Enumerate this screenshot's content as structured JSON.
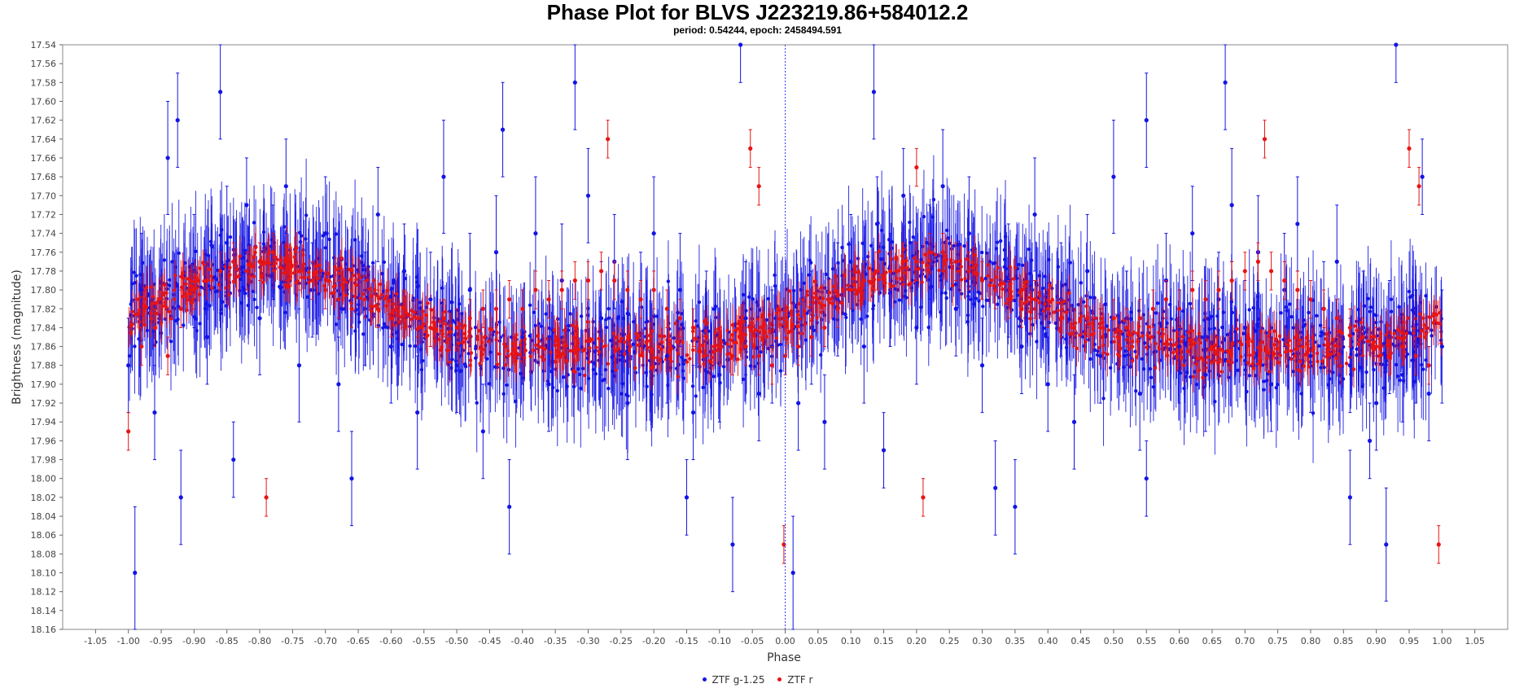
{
  "chart_data": {
    "type": "scatter",
    "title": "Phase Plot for BLVS J223219.86+584012.2",
    "subtitle": "period: 0.54244, epoch: 2458494.591",
    "xlabel": "Phase",
    "ylabel": "Brightness (magnitude)",
    "xlim": [
      -1.1,
      1.1
    ],
    "ylim": [
      17.54,
      18.16
    ],
    "y_inverted": true,
    "grid": false,
    "reference_line_x": 0,
    "legend_position": "bottom-center",
    "x_ticks": [
      "-1.05",
      "-1.00",
      "-0.95",
      "-0.90",
      "-0.85",
      "-0.80",
      "-0.75",
      "-0.70",
      "-0.65",
      "-0.60",
      "-0.55",
      "-0.50",
      "-0.45",
      "-0.40",
      "-0.35",
      "-0.30",
      "-0.25",
      "-0.20",
      "-0.15",
      "-0.10",
      "-0.05",
      "0.00",
      "0.05",
      "0.10",
      "0.15",
      "0.20",
      "0.25",
      "0.30",
      "0.35",
      "0.40",
      "0.45",
      "0.50",
      "0.55",
      "0.60",
      "0.65",
      "0.70",
      "0.75",
      "0.80",
      "0.85",
      "0.90",
      "0.95",
      "1.00",
      "1.05"
    ],
    "y_ticks": [
      "17.54",
      "17.56",
      "17.58",
      "17.60",
      "17.62",
      "17.64",
      "17.66",
      "17.68",
      "17.70",
      "17.72",
      "17.74",
      "17.76",
      "17.78",
      "17.80",
      "17.82",
      "17.84",
      "17.86",
      "17.88",
      "17.90",
      "17.92",
      "17.94",
      "17.96",
      "17.98",
      "18.00",
      "18.02",
      "18.04",
      "18.06",
      "18.08",
      "18.10",
      "18.12",
      "18.14",
      "18.16"
    ],
    "series": [
      {
        "name": "ZTF g-1.25",
        "color": "#1414e6",
        "points": [
          [
            -0.99,
            18.1,
            0.07
          ],
          [
            -0.925,
            17.62,
            0.05
          ],
          [
            -0.86,
            17.59,
            0.05
          ],
          [
            -0.84,
            17.98,
            0.04
          ],
          [
            -0.66,
            18.0,
            0.05
          ],
          [
            -0.43,
            17.63,
            0.05
          ],
          [
            -0.42,
            18.03,
            0.05
          ],
          [
            -0.32,
            17.58,
            0.05
          ],
          [
            -0.15,
            18.02,
            0.04
          ],
          [
            -0.08,
            18.07,
            0.05
          ],
          [
            -0.068,
            17.54,
            0.04
          ],
          [
            0.012,
            18.1,
            0.06
          ],
          [
            0.135,
            17.59,
            0.05
          ],
          [
            0.15,
            17.97,
            0.04
          ],
          [
            0.32,
            18.01,
            0.05
          ],
          [
            0.35,
            18.03,
            0.05
          ],
          [
            0.55,
            17.62,
            0.05
          ],
          [
            0.55,
            18.0,
            0.04
          ],
          [
            0.67,
            17.58,
            0.05
          ],
          [
            0.86,
            18.02,
            0.05
          ],
          [
            0.915,
            18.07,
            0.06
          ],
          [
            0.93,
            17.54,
            0.04
          ],
          [
            0.97,
            17.68,
            0.04
          ],
          [
            0.89,
            17.96,
            0.04
          ],
          [
            -1.0,
            17.88,
            0.05
          ],
          [
            -0.98,
            17.8,
            0.06
          ],
          [
            -0.96,
            17.93,
            0.05
          ],
          [
            -0.94,
            17.66,
            0.06
          ],
          [
            -0.92,
            18.02,
            0.05
          ],
          [
            -0.9,
            17.78,
            0.06
          ],
          [
            -0.88,
            17.85,
            0.05
          ],
          [
            -0.85,
            17.75,
            0.06
          ],
          [
            -0.82,
            17.71,
            0.05
          ],
          [
            -0.8,
            17.83,
            0.06
          ],
          [
            -0.78,
            17.76,
            0.05
          ],
          [
            -0.76,
            17.69,
            0.05
          ],
          [
            -0.74,
            17.88,
            0.06
          ],
          [
            -0.72,
            17.8,
            0.05
          ],
          [
            -0.7,
            17.74,
            0.06
          ],
          [
            -0.68,
            17.9,
            0.05
          ],
          [
            -0.64,
            17.82,
            0.06
          ],
          [
            -0.62,
            17.72,
            0.05
          ],
          [
            -0.6,
            17.86,
            0.06
          ],
          [
            -0.58,
            17.78,
            0.05
          ],
          [
            -0.56,
            17.93,
            0.06
          ],
          [
            -0.54,
            17.81,
            0.05
          ],
          [
            -0.52,
            17.68,
            0.06
          ],
          [
            -0.5,
            17.88,
            0.05
          ],
          [
            -0.48,
            17.8,
            0.06
          ],
          [
            -0.46,
            17.95,
            0.05
          ],
          [
            -0.44,
            17.76,
            0.06
          ],
          [
            -0.4,
            17.85,
            0.05
          ],
          [
            -0.38,
            17.74,
            0.06
          ],
          [
            -0.36,
            17.9,
            0.05
          ],
          [
            -0.34,
            17.79,
            0.06
          ],
          [
            -0.3,
            17.7,
            0.05
          ],
          [
            -0.28,
            17.83,
            0.06
          ],
          [
            -0.26,
            17.77,
            0.05
          ],
          [
            -0.24,
            17.92,
            0.06
          ],
          [
            -0.22,
            17.81,
            0.05
          ],
          [
            -0.2,
            17.74,
            0.06
          ],
          [
            -0.18,
            17.87,
            0.05
          ],
          [
            -0.16,
            17.8,
            0.06
          ],
          [
            -0.14,
            17.93,
            0.05
          ],
          [
            -0.12,
            17.84,
            0.06
          ],
          [
            -0.1,
            17.89,
            0.05
          ],
          [
            -0.06,
            17.83,
            0.06
          ],
          [
            -0.04,
            17.91,
            0.05
          ],
          [
            -0.02,
            17.86,
            0.06
          ],
          [
            0.02,
            17.92,
            0.05
          ],
          [
            0.04,
            17.84,
            0.06
          ],
          [
            0.06,
            17.94,
            0.05
          ],
          [
            0.08,
            17.81,
            0.06
          ],
          [
            0.1,
            17.77,
            0.05
          ],
          [
            0.12,
            17.86,
            0.06
          ],
          [
            0.14,
            17.73,
            0.05
          ],
          [
            0.16,
            17.8,
            0.06
          ],
          [
            0.18,
            17.7,
            0.05
          ],
          [
            0.2,
            17.84,
            0.06
          ],
          [
            0.22,
            17.76,
            0.05
          ],
          [
            0.24,
            17.69,
            0.06
          ],
          [
            0.26,
            17.82,
            0.05
          ],
          [
            0.28,
            17.74,
            0.06
          ],
          [
            0.3,
            17.88,
            0.05
          ],
          [
            0.34,
            17.79,
            0.06
          ],
          [
            0.36,
            17.86,
            0.05
          ],
          [
            0.38,
            17.72,
            0.06
          ],
          [
            0.4,
            17.9,
            0.05
          ],
          [
            0.42,
            17.81,
            0.06
          ],
          [
            0.44,
            17.94,
            0.05
          ],
          [
            0.46,
            17.78,
            0.06
          ],
          [
            0.48,
            17.87,
            0.05
          ],
          [
            0.5,
            17.68,
            0.06
          ],
          [
            0.52,
            17.83,
            0.05
          ],
          [
            0.54,
            17.91,
            0.06
          ],
          [
            0.58,
            17.79,
            0.05
          ],
          [
            0.6,
            17.86,
            0.06
          ],
          [
            0.62,
            17.74,
            0.05
          ],
          [
            0.64,
            17.89,
            0.06
          ],
          [
            0.66,
            17.81,
            0.05
          ],
          [
            0.68,
            17.71,
            0.06
          ],
          [
            0.7,
            17.84,
            0.05
          ],
          [
            0.72,
            17.76,
            0.06
          ],
          [
            0.74,
            17.9,
            0.05
          ],
          [
            0.76,
            17.8,
            0.06
          ],
          [
            0.78,
            17.73,
            0.05
          ],
          [
            0.8,
            17.87,
            0.06
          ],
          [
            0.82,
            17.82,
            0.05
          ],
          [
            0.84,
            17.77,
            0.06
          ],
          [
            0.86,
            17.88,
            0.05
          ],
          [
            0.88,
            17.84,
            0.06
          ],
          [
            0.9,
            17.92,
            0.05
          ],
          [
            0.92,
            17.85,
            0.06
          ],
          [
            0.94,
            17.89,
            0.05
          ],
          [
            0.96,
            17.86,
            0.06
          ],
          [
            0.98,
            17.91,
            0.05
          ],
          [
            1.0,
            17.86,
            0.06
          ]
        ]
      },
      {
        "name": "ZTF r",
        "color": "#e81414",
        "points": [
          [
            -1.0,
            17.95,
            0.02
          ],
          [
            -0.79,
            18.02,
            0.02
          ],
          [
            -0.27,
            17.64,
            0.02
          ],
          [
            -0.053,
            17.65,
            0.02
          ],
          [
            -0.04,
            17.69,
            0.02
          ],
          [
            -0.002,
            18.07,
            0.02
          ],
          [
            0.2,
            17.67,
            0.02
          ],
          [
            0.21,
            18.02,
            0.02
          ],
          [
            0.73,
            17.64,
            0.02
          ],
          [
            0.95,
            17.65,
            0.02
          ],
          [
            0.965,
            17.69,
            0.02
          ],
          [
            0.995,
            18.07,
            0.02
          ],
          [
            -0.98,
            17.86,
            0.02
          ],
          [
            -0.96,
            17.84,
            0.02
          ],
          [
            -0.94,
            17.87,
            0.02
          ],
          [
            -0.92,
            17.82,
            0.02
          ],
          [
            -0.9,
            17.8,
            0.02
          ],
          [
            -0.88,
            17.79,
            0.02
          ],
          [
            -0.86,
            17.78,
            0.02
          ],
          [
            -0.84,
            17.77,
            0.02
          ],
          [
            -0.82,
            17.78,
            0.02
          ],
          [
            -0.8,
            17.77,
            0.02
          ],
          [
            -0.78,
            17.76,
            0.02
          ],
          [
            -0.76,
            17.77,
            0.02
          ],
          [
            -0.74,
            17.78,
            0.02
          ],
          [
            -0.72,
            17.79,
            0.02
          ],
          [
            -0.7,
            17.8,
            0.02
          ],
          [
            -0.68,
            17.81,
            0.02
          ],
          [
            -0.66,
            17.82,
            0.02
          ],
          [
            -0.64,
            17.81,
            0.02
          ],
          [
            -0.62,
            17.82,
            0.02
          ],
          [
            -0.6,
            17.83,
            0.02
          ],
          [
            -0.58,
            17.82,
            0.02
          ],
          [
            -0.56,
            17.83,
            0.02
          ],
          [
            -0.54,
            17.84,
            0.02
          ],
          [
            -0.52,
            17.83,
            0.02
          ],
          [
            -0.5,
            17.84,
            0.02
          ],
          [
            -0.48,
            17.83,
            0.02
          ],
          [
            -0.46,
            17.82,
            0.02
          ],
          [
            -0.44,
            17.82,
            0.02
          ],
          [
            -0.42,
            17.81,
            0.02
          ],
          [
            -0.4,
            17.82,
            0.02
          ],
          [
            -0.38,
            17.8,
            0.02
          ],
          [
            -0.36,
            17.81,
            0.02
          ],
          [
            -0.34,
            17.8,
            0.02
          ],
          [
            -0.32,
            17.79,
            0.02
          ],
          [
            -0.3,
            17.79,
            0.02
          ],
          [
            -0.28,
            17.78,
            0.02
          ],
          [
            -0.26,
            17.79,
            0.02
          ],
          [
            -0.24,
            17.8,
            0.02
          ],
          [
            -0.22,
            17.81,
            0.02
          ],
          [
            -0.2,
            17.8,
            0.02
          ],
          [
            -0.18,
            17.82,
            0.02
          ],
          [
            -0.16,
            17.83,
            0.02
          ],
          [
            -0.14,
            17.84,
            0.02
          ],
          [
            -0.12,
            17.85,
            0.02
          ],
          [
            -0.1,
            17.86,
            0.02
          ],
          [
            -0.08,
            17.87,
            0.02
          ],
          [
            -0.06,
            17.86,
            0.02
          ],
          [
            -0.04,
            17.87,
            0.02
          ],
          [
            -0.02,
            17.88,
            0.02
          ],
          [
            0.0,
            17.87,
            0.02
          ],
          [
            0.02,
            17.86,
            0.02
          ],
          [
            0.04,
            17.85,
            0.02
          ],
          [
            0.06,
            17.84,
            0.02
          ],
          [
            0.08,
            17.82,
            0.02
          ],
          [
            0.1,
            17.8,
            0.02
          ],
          [
            0.12,
            17.79,
            0.02
          ],
          [
            0.14,
            17.78,
            0.02
          ],
          [
            0.16,
            17.78,
            0.02
          ],
          [
            0.18,
            17.77,
            0.02
          ],
          [
            0.2,
            17.77,
            0.02
          ],
          [
            0.22,
            17.76,
            0.02
          ],
          [
            0.24,
            17.76,
            0.02
          ],
          [
            0.26,
            17.77,
            0.02
          ],
          [
            0.28,
            17.78,
            0.02
          ],
          [
            0.3,
            17.79,
            0.02
          ],
          [
            0.32,
            17.8,
            0.02
          ],
          [
            0.34,
            17.81,
            0.02
          ],
          [
            0.36,
            17.82,
            0.02
          ],
          [
            0.38,
            17.81,
            0.02
          ],
          [
            0.4,
            17.82,
            0.02
          ],
          [
            0.42,
            17.83,
            0.02
          ],
          [
            0.44,
            17.84,
            0.02
          ],
          [
            0.46,
            17.83,
            0.02
          ],
          [
            0.48,
            17.84,
            0.02
          ],
          [
            0.5,
            17.83,
            0.02
          ],
          [
            0.52,
            17.84,
            0.02
          ],
          [
            0.54,
            17.83,
            0.02
          ],
          [
            0.56,
            17.82,
            0.02
          ],
          [
            0.58,
            17.81,
            0.02
          ],
          [
            0.6,
            17.82,
            0.02
          ],
          [
            0.62,
            17.8,
            0.02
          ],
          [
            0.64,
            17.81,
            0.02
          ],
          [
            0.66,
            17.8,
            0.02
          ],
          [
            0.68,
            17.79,
            0.02
          ],
          [
            0.7,
            17.78,
            0.02
          ],
          [
            0.72,
            17.77,
            0.02
          ],
          [
            0.74,
            17.78,
            0.02
          ],
          [
            0.76,
            17.79,
            0.02
          ],
          [
            0.78,
            17.8,
            0.02
          ],
          [
            0.8,
            17.81,
            0.02
          ],
          [
            0.82,
            17.82,
            0.02
          ],
          [
            0.84,
            17.83,
            0.02
          ],
          [
            0.86,
            17.84,
            0.02
          ],
          [
            0.88,
            17.85,
            0.02
          ],
          [
            0.9,
            17.86,
            0.02
          ],
          [
            0.92,
            17.87,
            0.02
          ],
          [
            0.94,
            17.86,
            0.02
          ],
          [
            0.96,
            17.87,
            0.02
          ],
          [
            0.98,
            17.88,
            0.02
          ]
        ]
      }
    ]
  }
}
